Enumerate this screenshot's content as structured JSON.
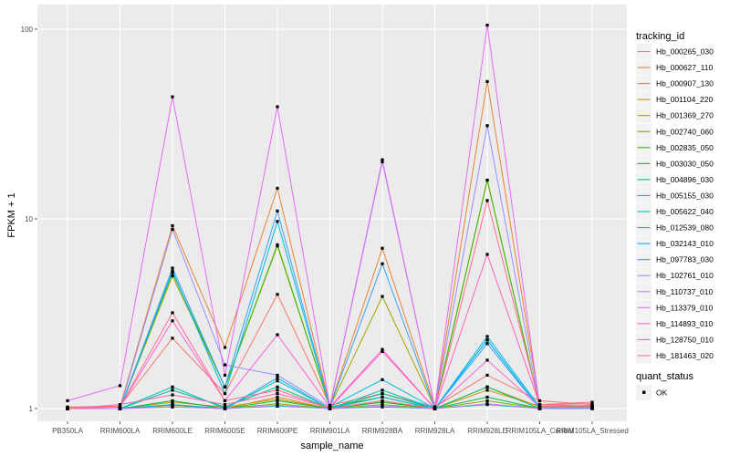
{
  "chart_data": {
    "type": "line",
    "xlabel": "sample_name",
    "ylabel": "FPKM + 1",
    "y_scale": "log10",
    "ylim": [
      0.95,
      120
    ],
    "y_ticks": [
      {
        "value": 1,
        "label": "1"
      },
      {
        "value": 10,
        "label": "10"
      },
      {
        "value": 100,
        "label": "100"
      }
    ],
    "grid": true,
    "legend_position": "right",
    "categories": [
      "PB350LA",
      "RRIM600LA",
      "RRIM600LE",
      "RRIM600SE",
      "RRIM600PE",
      "RRIM901LA",
      "RRIM928BA",
      "RRIM928LA",
      "RRIM928LE",
      "RRIM105LA_Control",
      "RRIM105LA_Stressed"
    ],
    "color_legend_title": "tracking_id",
    "shape_legend_title": "quant_status",
    "shape_legend_items": [
      {
        "label": "OK",
        "symbol": "square"
      }
    ],
    "series": [
      {
        "name": "Hb_000265_030",
        "color": "#F8766D",
        "values": [
          1.02,
          1.03,
          2.35,
          1.2,
          4.0,
          1.04,
          1.2,
          1.02,
          1.5,
          1.1,
          1.05
        ]
      },
      {
        "name": "Hb_000627_110",
        "color": "#EA8331",
        "values": [
          1.01,
          1.02,
          9.2,
          2.1,
          14.5,
          1.03,
          7.0,
          1.02,
          53.0,
          1.05,
          1.03
        ]
      },
      {
        "name": "Hb_000907_130",
        "color": "#D89000",
        "values": [
          1.0,
          1.0,
          1.05,
          1.0,
          1.15,
          1.0,
          1.08,
          1.0,
          1.3,
          1.02,
          1.04
        ]
      },
      {
        "name": "Hb_001104_220",
        "color": "#C09B00",
        "values": [
          1.0,
          1.0,
          1.08,
          1.02,
          1.12,
          1.0,
          1.1,
          1.0,
          1.25,
          1.03,
          1.03
        ]
      },
      {
        "name": "Hb_001369_270",
        "color": "#A3A500",
        "values": [
          1.0,
          1.0,
          5.0,
          1.3,
          7.2,
          1.02,
          3.9,
          1.01,
          16.0,
          1.02,
          1.03
        ]
      },
      {
        "name": "Hb_002740_060",
        "color": "#7CAE00",
        "values": [
          1.0,
          1.0,
          1.04,
          1.0,
          1.06,
          1.0,
          1.05,
          1.0,
          1.1,
          1.0,
          1.02
        ]
      },
      {
        "name": "Hb_002835_050",
        "color": "#39B600",
        "values": [
          1.0,
          1.0,
          5.2,
          1.3,
          7.3,
          1.02,
          1.15,
          1.0,
          16.0,
          1.02,
          1.02
        ]
      },
      {
        "name": "Hb_003030_050",
        "color": "#00BB4E",
        "values": [
          1.0,
          1.0,
          1.1,
          1.0,
          1.1,
          1.0,
          1.08,
          1.0,
          1.15,
          1.0,
          1.01
        ]
      },
      {
        "name": "Hb_004896_030",
        "color": "#00BF7D",
        "values": [
          1.0,
          1.0,
          1.25,
          1.02,
          1.3,
          1.0,
          1.2,
          1.0,
          1.3,
          1.0,
          1.01
        ]
      },
      {
        "name": "Hb_005155_030",
        "color": "#00C1A3",
        "values": [
          1.0,
          1.0,
          1.02,
          1.0,
          1.03,
          1.0,
          1.02,
          1.0,
          1.05,
          1.0,
          1.01
        ]
      },
      {
        "name": "Hb_005622_040",
        "color": "#00BFC4",
        "values": [
          1.0,
          1.0,
          1.3,
          1.0,
          1.4,
          1.0,
          1.25,
          1.0,
          2.3,
          1.0,
          1.01
        ]
      },
      {
        "name": "Hb_012539_080",
        "color": "#00BAE0",
        "values": [
          1.0,
          1.0,
          5.3,
          1.2,
          9.7,
          1.02,
          1.42,
          1.0,
          2.4,
          1.02,
          1.0
        ]
      },
      {
        "name": "Hb_032143_010",
        "color": "#00B0F6",
        "values": [
          1.0,
          1.0,
          1.05,
          1.0,
          1.45,
          1.0,
          1.15,
          1.0,
          2.3,
          1.0,
          1.0
        ]
      },
      {
        "name": "Hb_097783_030",
        "color": "#35A2FF",
        "values": [
          1.0,
          1.0,
          5.5,
          1.3,
          11.0,
          1.02,
          5.8,
          1.0,
          2.2,
          1.0,
          1.0
        ]
      },
      {
        "name": "Hb_102761_010",
        "color": "#9590FF",
        "values": [
          1.0,
          1.0,
          8.8,
          1.7,
          1.5,
          1.02,
          20.0,
          1.02,
          31.0,
          1.02,
          1.02
        ]
      },
      {
        "name": "Hb_110737_010",
        "color": "#C77CFF",
        "values": [
          1.0,
          1.0,
          1.02,
          1.0,
          1.04,
          1.0,
          1.03,
          1.0,
          1.06,
          1.0,
          1.0
        ]
      },
      {
        "name": "Hb_113379_010",
        "color": "#E76BF3",
        "values": [
          1.1,
          1.32,
          44.0,
          1.5,
          39.0,
          1.03,
          20.5,
          1.02,
          105.0,
          1.02,
          1.02
        ]
      },
      {
        "name": "Hb_114893_010",
        "color": "#FA62DB",
        "values": [
          1.0,
          1.02,
          2.9,
          1.1,
          2.45,
          1.02,
          2.05,
          1.0,
          1.8,
          1.02,
          1.02
        ]
      },
      {
        "name": "Hb_128750_010",
        "color": "#FF62BC",
        "values": [
          1.0,
          1.05,
          1.18,
          1.05,
          1.2,
          1.01,
          2.0,
          1.0,
          6.5,
          1.05,
          1.08
        ]
      },
      {
        "name": "Hb_181463_020",
        "color": "#FF6C91",
        "values": [
          1.0,
          1.02,
          3.2,
          1.1,
          1.25,
          1.0,
          1.1,
          1.0,
          12.5,
          1.05,
          1.06
        ]
      }
    ]
  }
}
